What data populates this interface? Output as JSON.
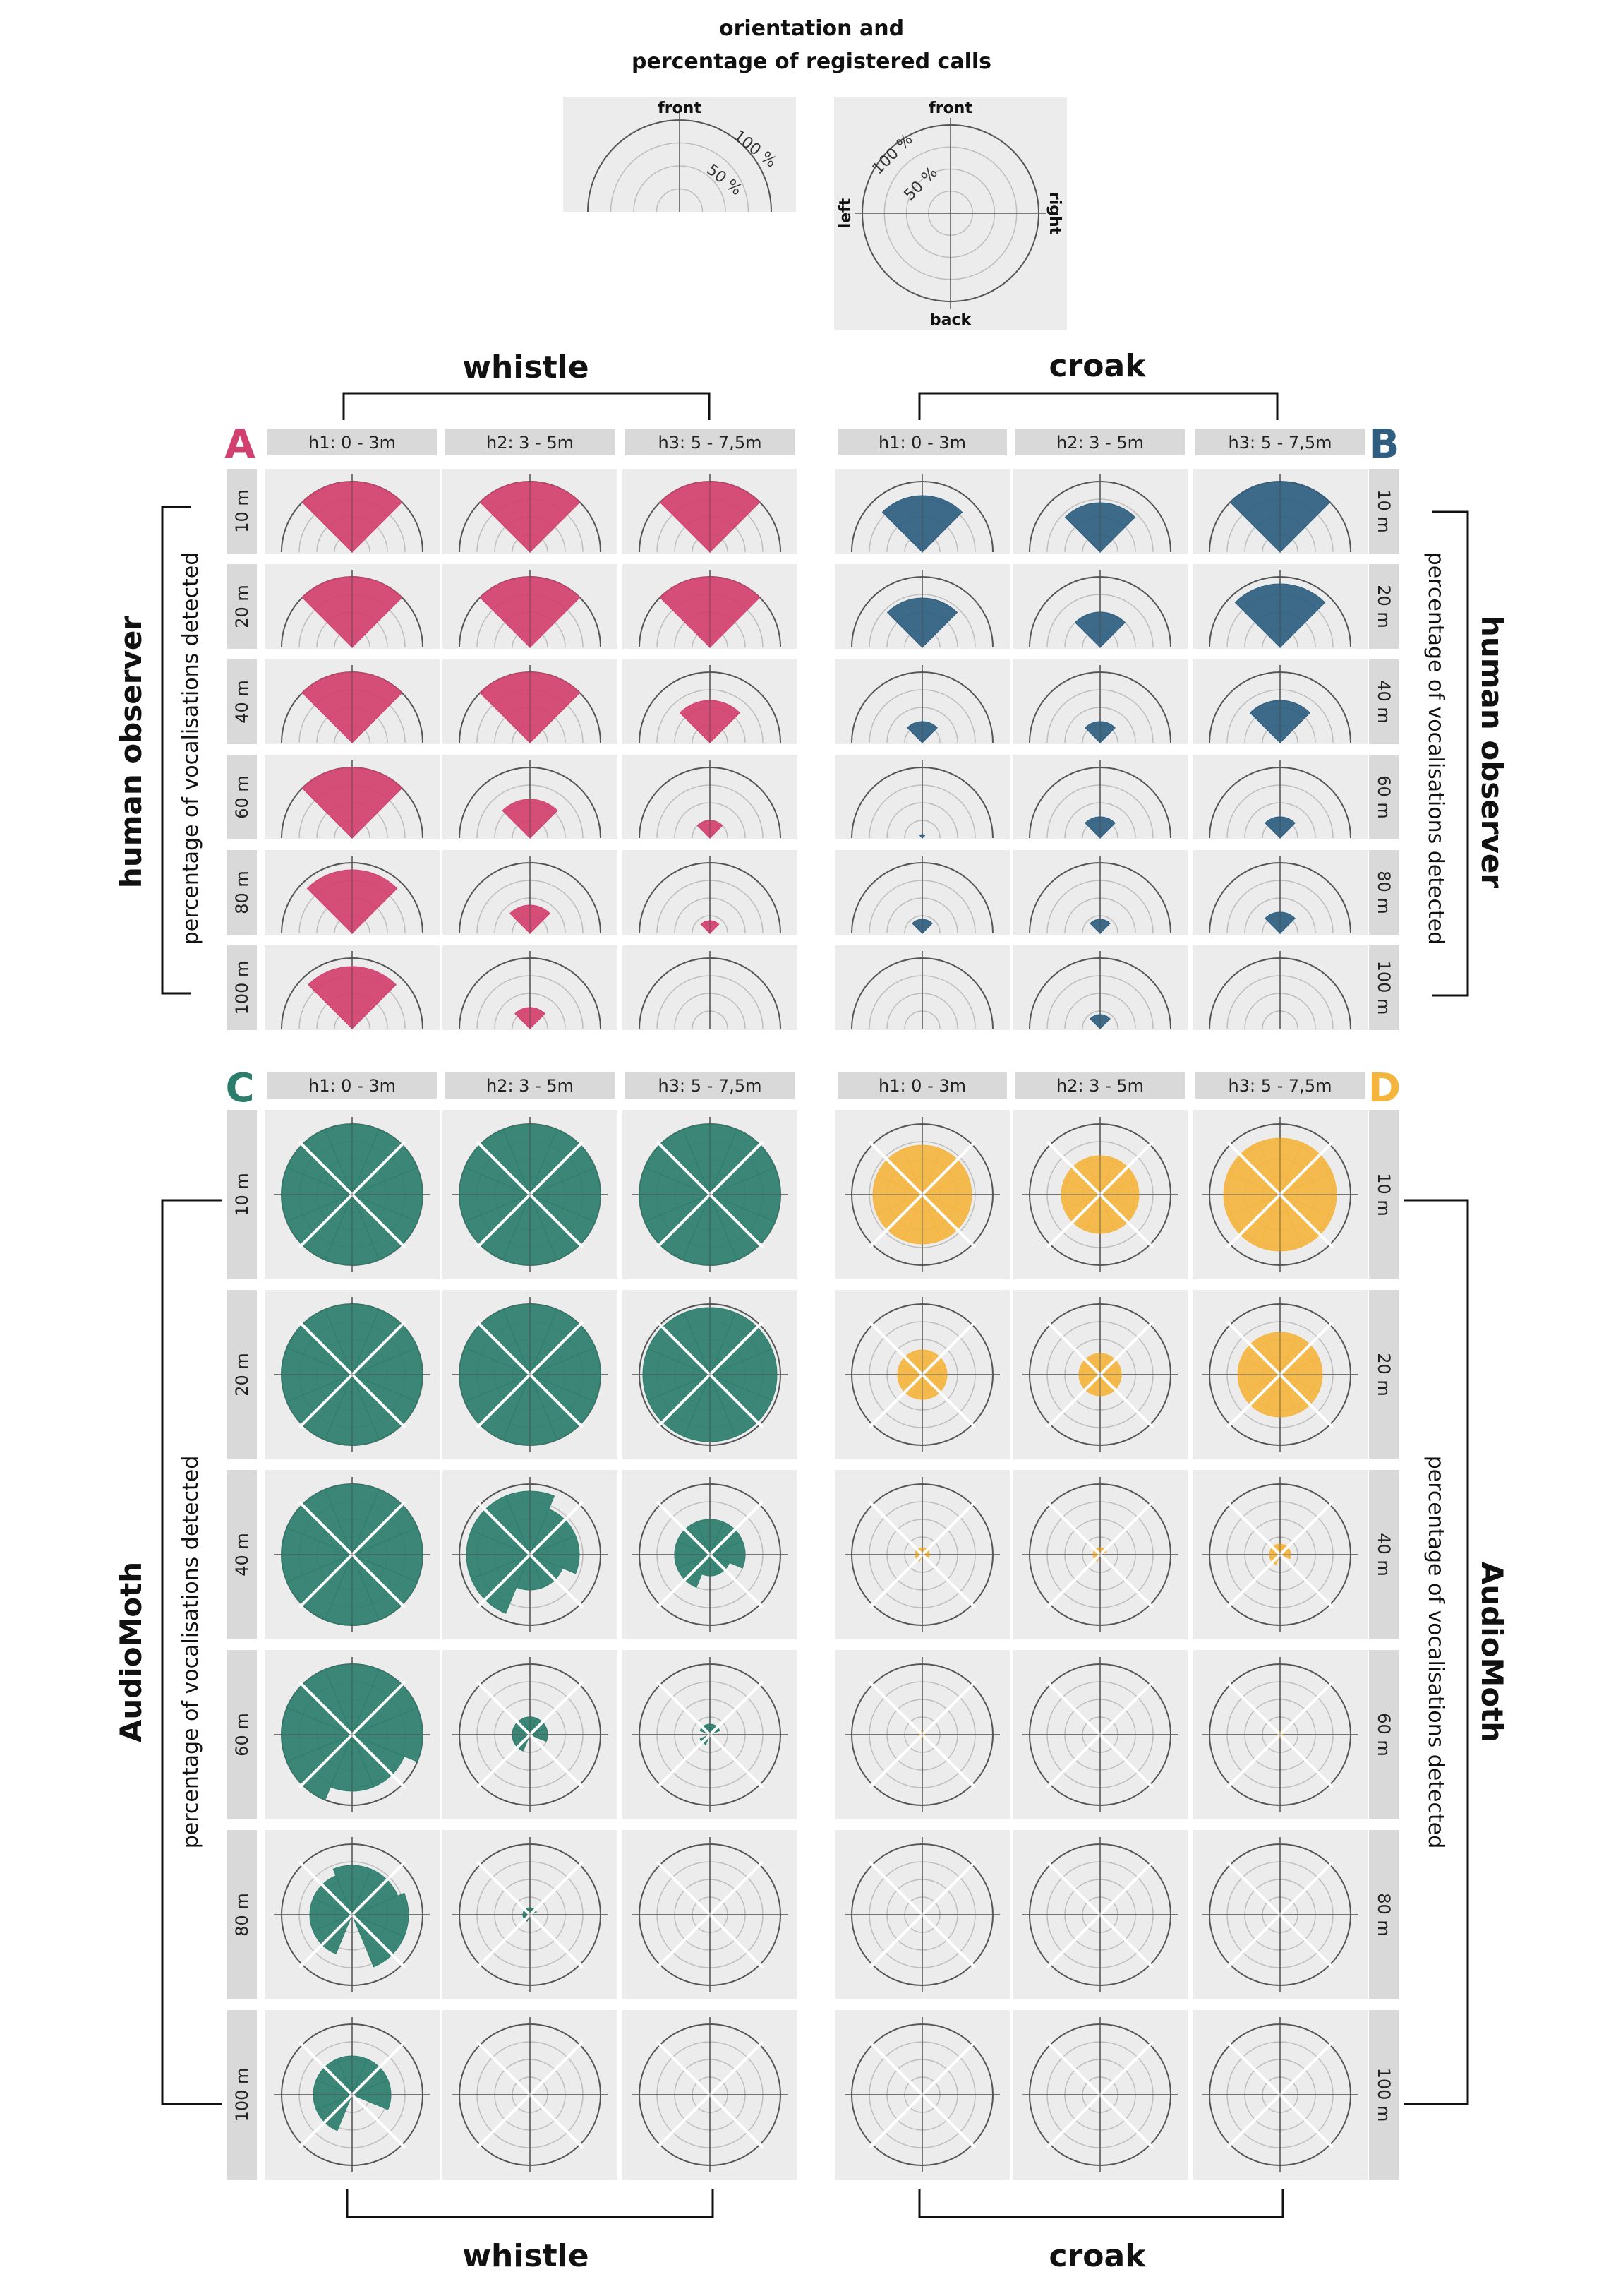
{
  "legend": {
    "title_line1": "orientation and",
    "title_line2": "percentage of registered calls",
    "front": "front",
    "back": "back",
    "left": "left",
    "right": "right",
    "label_100": "100 %",
    "label_50": "50 %"
  },
  "groups": {
    "whistle": "whistle",
    "croak": "croak",
    "human_observer": "human observer",
    "audiomoth": "AudioMoth",
    "axis_label": "percentage of vocalisations detected"
  },
  "colors": {
    "A": "#d1406e",
    "B": "#2f5e80",
    "C": "#2d7d6c",
    "D": "#f4b53f",
    "panel_bg": "#ececec",
    "header_bg": "#d9d9d9"
  },
  "chart_data": [
    {
      "type": "polar-bar",
      "panel": "A",
      "title": "whistle — human observer",
      "heights": [
        "h1: 0 - 3m",
        "h2: 3 - 5m",
        "h3: 5 - 7,5m"
      ],
      "distances": [
        "10 m",
        "20 m",
        "40 m",
        "60 m",
        "80 m",
        "100 m"
      ],
      "directions_deg": [
        -45,
        0,
        45
      ],
      "unit": "% of calls detected",
      "rmax": 100,
      "values": [
        [
          [
            100,
            100
          ],
          [
            100,
            100
          ],
          [
            100,
            100
          ]
        ],
        [
          [
            100,
            100
          ],
          [
            100,
            100
          ],
          [
            100,
            100
          ]
        ],
        [
          [
            100,
            100
          ],
          [
            100,
            100
          ],
          [
            60,
            60
          ]
        ],
        [
          [
            100,
            100
          ],
          [
            55,
            55
          ],
          [
            25,
            25
          ]
        ],
        [
          [
            90,
            90
          ],
          [
            40,
            40
          ],
          [
            18,
            18
          ]
        ],
        [
          [
            88,
            88
          ],
          [
            30,
            30
          ],
          [
            0,
            0
          ]
        ]
      ]
    },
    {
      "type": "polar-bar",
      "panel": "B",
      "title": "croak — human observer",
      "heights": [
        "h1: 0 - 3m",
        "h2: 3 - 5m",
        "h3: 5 - 7,5m"
      ],
      "distances": [
        "10 m",
        "20 m",
        "40 m",
        "60 m",
        "80 m",
        "100 m"
      ],
      "directions_deg": [
        -45,
        0,
        45
      ],
      "unit": "% of calls detected",
      "rmax": 100,
      "values": [
        [
          [
            80,
            80
          ],
          [
            70,
            70
          ],
          [
            100,
            100
          ]
        ],
        [
          [
            70,
            70
          ],
          [
            50,
            50
          ],
          [
            90,
            90
          ]
        ],
        [
          [
            30,
            30
          ],
          [
            30,
            30
          ],
          [
            60,
            60
          ]
        ],
        [
          [
            5,
            5
          ],
          [
            30,
            30
          ],
          [
            30,
            30
          ]
        ],
        [
          [
            20,
            20
          ],
          [
            20,
            20
          ],
          [
            30,
            30
          ]
        ],
        [
          [
            0,
            0
          ],
          [
            20,
            20
          ],
          [
            0,
            0
          ]
        ]
      ]
    },
    {
      "type": "polar-bar",
      "panel": "C",
      "title": "whistle — AudioMoth",
      "heights": [
        "h1: 0 - 3m",
        "h2: 3 - 5m",
        "h3: 5 - 7,5m"
      ],
      "distances": [
        "10 m",
        "20 m",
        "40 m",
        "60 m",
        "80 m",
        "100 m"
      ],
      "directions_deg": [
        -135,
        -90,
        -45,
        0,
        45,
        90,
        135,
        180
      ],
      "unit": "% of calls detected",
      "rmax": 100,
      "values": [
        [
          [
            100,
            100,
            100,
            100,
            100,
            100,
            100,
            100
          ],
          [
            100,
            100,
            100,
            100,
            100,
            100,
            100,
            100
          ],
          [
            100,
            100,
            100,
            100,
            100,
            100,
            100,
            100
          ]
        ],
        [
          [
            100,
            100,
            100,
            100,
            100,
            100,
            100,
            100
          ],
          [
            100,
            100,
            100,
            100,
            100,
            100,
            100,
            100
          ],
          [
            95,
            95,
            95,
            95,
            95,
            95,
            95,
            95
          ]
        ],
        [
          [
            100,
            100,
            100,
            100,
            100,
            100,
            100,
            100
          ],
          [
            90,
            90,
            90,
            90,
            70,
            70,
            50,
            50
          ],
          [
            50,
            50,
            50,
            50,
            50,
            50,
            30,
            30
          ]
        ],
        [
          [
            100,
            100,
            100,
            100,
            100,
            100,
            80,
            80
          ],
          [
            25,
            25,
            25,
            25,
            25,
            25,
            0,
            0
          ],
          [
            15,
            0,
            15,
            15,
            15,
            0,
            0,
            0
          ]
        ],
        [
          [
            60,
            60,
            60,
            70,
            70,
            80,
            80,
            0
          ],
          [
            10,
            10,
            10,
            10,
            10,
            0,
            0,
            0
          ],
          [
            0,
            0,
            0,
            0,
            0,
            0,
            0,
            0
          ]
        ],
        [
          [
            55,
            55,
            55,
            55,
            55,
            55,
            0,
            0
          ],
          [
            3,
            3,
            3,
            3,
            3,
            3,
            3,
            3
          ],
          [
            0,
            0,
            0,
            0,
            0,
            0,
            0,
            0
          ]
        ]
      ]
    },
    {
      "type": "polar-bar",
      "panel": "D",
      "title": "croak — AudioMoth",
      "heights": [
        "h1: 0 - 3m",
        "h2: 3 - 5m",
        "h3: 5 - 7,5m"
      ],
      "distances": [
        "10 m",
        "20 m",
        "40 m",
        "60 m",
        "80 m",
        "100 m"
      ],
      "directions_deg": [
        -135,
        -90,
        -45,
        0,
        45,
        90,
        135,
        180
      ],
      "unit": "% of calls detected",
      "rmax": 100,
      "values": [
        [
          [
            70,
            70,
            70,
            70,
            70,
            70,
            70,
            70
          ],
          [
            55,
            55,
            55,
            55,
            55,
            55,
            55,
            55
          ],
          [
            80,
            80,
            80,
            80,
            80,
            80,
            80,
            80
          ]
        ],
        [
          [
            35,
            35,
            35,
            35,
            35,
            35,
            35,
            35
          ],
          [
            30,
            30,
            30,
            30,
            30,
            30,
            30,
            30
          ],
          [
            60,
            60,
            60,
            60,
            60,
            60,
            60,
            60
          ]
        ],
        [
          [
            10,
            10,
            10,
            10,
            10,
            10,
            0,
            0
          ],
          [
            10,
            10,
            10,
            10,
            10,
            0,
            0,
            0
          ],
          [
            15,
            15,
            15,
            15,
            15,
            15,
            0,
            0
          ]
        ],
        [
          [
            5,
            5,
            5,
            5,
            5,
            5,
            5,
            5
          ],
          [
            3,
            3,
            3,
            3,
            3,
            3,
            3,
            3
          ],
          [
            5,
            5,
            5,
            5,
            5,
            5,
            5,
            5
          ]
        ],
        [
          [
            0,
            0,
            0,
            0,
            0,
            0,
            0,
            0
          ],
          [
            0,
            0,
            0,
            0,
            0,
            0,
            0,
            0
          ],
          [
            0,
            0,
            0,
            0,
            0,
            0,
            0,
            0
          ]
        ],
        [
          [
            0,
            0,
            0,
            0,
            0,
            0,
            0,
            0
          ],
          [
            0,
            0,
            0,
            0,
            0,
            0,
            0,
            0
          ],
          [
            0,
            0,
            0,
            0,
            0,
            0,
            0,
            0
          ]
        ]
      ]
    }
  ]
}
